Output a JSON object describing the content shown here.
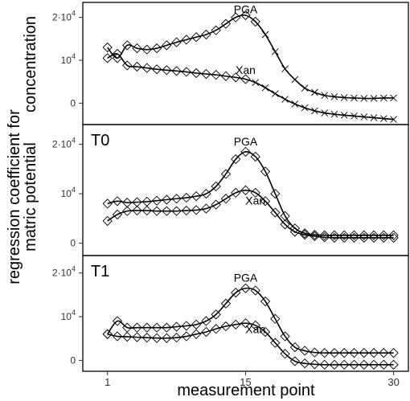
{
  "chart_data": [
    {
      "type": "line",
      "panel_label": "",
      "xlabel": "measurement point",
      "ylabel": "regression coefficient for concentration",
      "ylim": [
        -5000,
        23500
      ],
      "yticks": [
        {
          "value": 20000,
          "base": "2·10",
          "exp": "4"
        },
        {
          "value": 10000,
          "base": "10",
          "exp": "4"
        },
        {
          "value": 0,
          "base": "0",
          "exp": ""
        }
      ],
      "series": [
        {
          "name": "PGA",
          "label_at": [
            15,
            21000
          ],
          "points": [
            [
              1,
              13000
            ],
            [
              2,
              10500
            ],
            [
              3,
              13500
            ],
            [
              4,
              12800
            ],
            [
              5,
              12500
            ],
            [
              6,
              12800
            ],
            [
              7,
              13500
            ],
            [
              8,
              14200
            ],
            [
              9,
              14800
            ],
            [
              10,
              15400
            ],
            [
              11,
              16000
            ],
            [
              12,
              17000
            ],
            [
              13,
              18500
            ],
            [
              14,
              20000
            ],
            [
              15,
              20500
            ],
            [
              16,
              19000
            ],
            [
              17,
              16000
            ],
            [
              18,
              12000
            ],
            [
              19,
              8000
            ],
            [
              20,
              5500
            ],
            [
              21,
              3500
            ],
            [
              22,
              2500
            ],
            [
              23,
              1800
            ],
            [
              24,
              1500
            ],
            [
              25,
              1300
            ],
            [
              26,
              1200
            ],
            [
              27,
              1100
            ],
            [
              28,
              1100
            ],
            [
              29,
              1200
            ],
            [
              30,
              1200
            ]
          ],
          "marker": "diamond",
          "marker_from": 1,
          "marker_to": 16
        },
        {
          "name": "Xan",
          "label_at": [
            15,
            6800
          ],
          "points": [
            [
              1,
              10500
            ],
            [
              2,
              11500
            ],
            [
              3,
              8800
            ],
            [
              4,
              8500
            ],
            [
              5,
              8200
            ],
            [
              6,
              7900
            ],
            [
              7,
              7700
            ],
            [
              8,
              7500
            ],
            [
              9,
              7300
            ],
            [
              10,
              7000
            ],
            [
              11,
              6800
            ],
            [
              12,
              6600
            ],
            [
              13,
              6300
            ],
            [
              14,
              6000
            ],
            [
              15,
              5600
            ],
            [
              16,
              4800
            ],
            [
              17,
              3600
            ],
            [
              18,
              2200
            ],
            [
              19,
              900
            ],
            [
              20,
              -200
            ],
            [
              21,
              -1100
            ],
            [
              22,
              -1800
            ],
            [
              23,
              -2300
            ],
            [
              24,
              -2600
            ],
            [
              25,
              -2800
            ],
            [
              26,
              -3000
            ],
            [
              27,
              -3200
            ],
            [
              28,
              -3400
            ],
            [
              29,
              -3600
            ],
            [
              30,
              -3800
            ]
          ],
          "marker": "diamond",
          "marker_from": 1,
          "marker_to": 15
        }
      ],
      "cross_series": [
        {
          "name": "PGA",
          "from": 17,
          "to": 30
        },
        {
          "name": "Xan",
          "from": 16,
          "to": 30
        }
      ]
    },
    {
      "type": "line",
      "panel_label": "T0",
      "ylim": [
        -2500,
        24000
      ],
      "yticks": [
        {
          "value": 20000,
          "base": "2·10",
          "exp": "4"
        },
        {
          "value": 10000,
          "base": "10",
          "exp": "4"
        },
        {
          "value": 0,
          "base": "0",
          "exp": ""
        }
      ],
      "series": [
        {
          "name": "PGA",
          "label_at": [
            15,
            19800
          ],
          "points": [
            [
              1,
              8000
            ],
            [
              2,
              8500
            ],
            [
              3,
              8200
            ],
            [
              4,
              8300
            ],
            [
              5,
              8400
            ],
            [
              6,
              8600
            ],
            [
              7,
              8800
            ],
            [
              8,
              9000
            ],
            [
              9,
              9200
            ],
            [
              10,
              9500
            ],
            [
              11,
              10000
            ],
            [
              12,
              11500
            ],
            [
              13,
              14000
            ],
            [
              14,
              17000
            ],
            [
              15,
              18500
            ],
            [
              16,
              17500
            ],
            [
              17,
              14500
            ],
            [
              18,
              10000
            ],
            [
              19,
              5500
            ],
            [
              20,
              3000
            ],
            [
              21,
              2000
            ],
            [
              22,
              1700
            ],
            [
              23,
              1600
            ],
            [
              24,
              1600
            ],
            [
              25,
              1600
            ],
            [
              26,
              1600
            ],
            [
              27,
              1600
            ],
            [
              28,
              1600
            ],
            [
              29,
              1600
            ],
            [
              30,
              1600
            ]
          ],
          "marker": "diamond",
          "marker_from": 1,
          "marker_to": 30
        },
        {
          "name": "Xan",
          "label_at": [
            16,
            7800
          ],
          "points": [
            [
              1,
              4500
            ],
            [
              2,
              5800
            ],
            [
              3,
              6500
            ],
            [
              4,
              6600
            ],
            [
              5,
              6600
            ],
            [
              6,
              6500
            ],
            [
              7,
              6500
            ],
            [
              8,
              6500
            ],
            [
              9,
              6600
            ],
            [
              10,
              6700
            ],
            [
              11,
              7000
            ],
            [
              12,
              7800
            ],
            [
              13,
              9000
            ],
            [
              14,
              10200
            ],
            [
              15,
              10700
            ],
            [
              16,
              10200
            ],
            [
              17,
              8500
            ],
            [
              18,
              6200
            ],
            [
              19,
              3800
            ],
            [
              20,
              2300
            ],
            [
              21,
              1700
            ],
            [
              22,
              1400
            ],
            [
              23,
              1200
            ],
            [
              24,
              1100
            ],
            [
              25,
              1100
            ],
            [
              26,
              1100
            ],
            [
              27,
              1100
            ],
            [
              28,
              1100
            ],
            [
              29,
              1100
            ],
            [
              30,
              1100
            ]
          ],
          "marker": "diamond",
          "marker_from": 1,
          "marker_to": 30
        }
      ]
    },
    {
      "type": "line",
      "panel_label": "T1",
      "ylim": [
        -2500,
        24000
      ],
      "yticks": [
        {
          "value": 20000,
          "base": "2·10",
          "exp": "4"
        },
        {
          "value": 10000,
          "base": "10",
          "exp": "4"
        },
        {
          "value": 0,
          "base": "0",
          "exp": ""
        }
      ],
      "series": [
        {
          "name": "PGA",
          "label_at": [
            15,
            18000
          ],
          "points": [
            [
              1,
              6000
            ],
            [
              2,
              9000
            ],
            [
              3,
              7500
            ],
            [
              4,
              7500
            ],
            [
              5,
              7500
            ],
            [
              6,
              7500
            ],
            [
              7,
              7500
            ],
            [
              8,
              7700
            ],
            [
              9,
              7900
            ],
            [
              10,
              8200
            ],
            [
              11,
              9000
            ],
            [
              12,
              10500
            ],
            [
              13,
              13000
            ],
            [
              14,
              15500
            ],
            [
              15,
              16500
            ],
            [
              16,
              16000
            ],
            [
              17,
              13500
            ],
            [
              18,
              9500
            ],
            [
              19,
              5500
            ],
            [
              20,
              3000
            ],
            [
              21,
              2200
            ],
            [
              22,
              1800
            ],
            [
              23,
              1700
            ],
            [
              24,
              1700
            ],
            [
              25,
              1700
            ],
            [
              26,
              1700
            ],
            [
              27,
              1700
            ],
            [
              28,
              1700
            ],
            [
              29,
              1700
            ],
            [
              30,
              1700
            ]
          ],
          "marker": "diamond",
          "marker_from": 1,
          "marker_to": 30
        },
        {
          "name": "Xan",
          "label_at": [
            16,
            6200
          ],
          "points": [
            [
              1,
              6000
            ],
            [
              2,
              5500
            ],
            [
              3,
              5400
            ],
            [
              4,
              5300
            ],
            [
              5,
              5200
            ],
            [
              6,
              5100
            ],
            [
              7,
              5100
            ],
            [
              8,
              5200
            ],
            [
              9,
              5500
            ],
            [
              10,
              6000
            ],
            [
              11,
              6500
            ],
            [
              12,
              7200
            ],
            [
              13,
              7800
            ],
            [
              14,
              8200
            ],
            [
              15,
              8500
            ],
            [
              16,
              8000
            ],
            [
              17,
              6500
            ],
            [
              18,
              4000
            ],
            [
              19,
              1500
            ],
            [
              20,
              -200
            ],
            [
              21,
              -700
            ],
            [
              22,
              -900
            ],
            [
              23,
              -1000
            ],
            [
              24,
              -1000
            ],
            [
              25,
              -1000
            ],
            [
              26,
              -1000
            ],
            [
              27,
              -1000
            ],
            [
              28,
              -1000
            ],
            [
              29,
              -1000
            ],
            [
              30,
              -1000
            ]
          ],
          "marker": "diamond",
          "marker_from": 1,
          "marker_to": 30
        }
      ]
    }
  ],
  "axes": {
    "xlabel": "measurement point",
    "ylabel_line1": "regression coefficient for",
    "ylabel_line2": "matric potential",
    "ylabel_line3": "concentration",
    "xticks": [
      1,
      15,
      30
    ],
    "xlim": [
      -1.5,
      31.5
    ]
  }
}
